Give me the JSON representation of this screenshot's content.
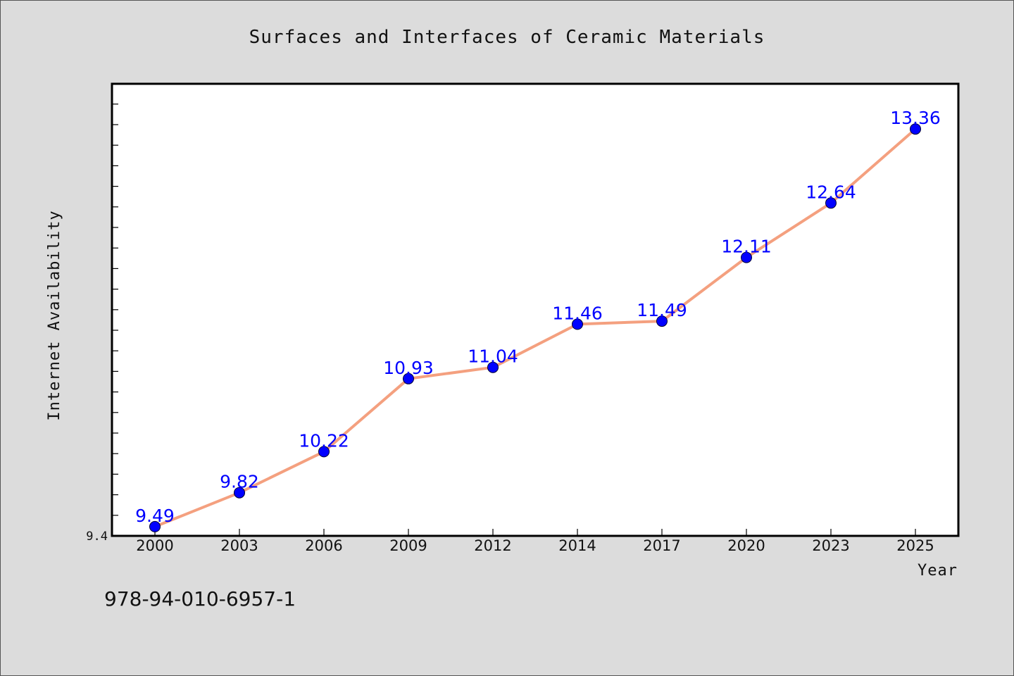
{
  "chart_data": {
    "type": "line",
    "title": "Surfaces and Interfaces of Ceramic Materials",
    "xlabel": "Year",
    "ylabel": "Internet Availability",
    "categories": [
      "2000",
      "2003",
      "2006",
      "2009",
      "2012",
      "2014",
      "2017",
      "2020",
      "2023",
      "2025"
    ],
    "series": [
      {
        "values": [
          9.49,
          9.82,
          10.22,
          10.93,
          11.04,
          11.46,
          11.49,
          12.11,
          12.64,
          13.36
        ],
        "labels": [
          "9.49",
          "9.82",
          "10.22",
          "10.93",
          "11.04",
          "11.46",
          "11.49",
          "12.11",
          "12.64",
          "13.36"
        ]
      }
    ],
    "ylim": [
      9.4,
      13.8
    ],
    "y_tick_label": "9.4",
    "grid": false,
    "line_color": "#f4a07f",
    "marker_color": "#0000ff",
    "label_color": "#0000ff"
  },
  "footer": {
    "code": "978-94-010-6957-1"
  }
}
